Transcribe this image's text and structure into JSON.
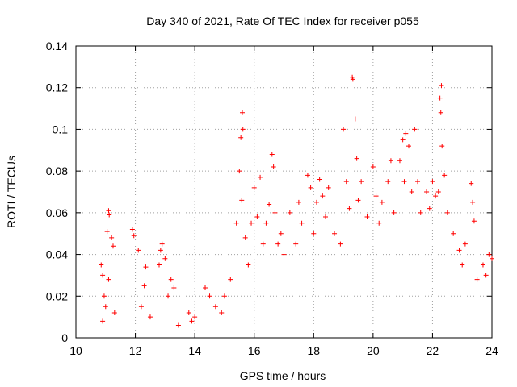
{
  "chart_data": {
    "type": "scatter",
    "title": "Day 340 of 2021, Rate Of TEC Index for receiver p055",
    "xlabel": "GPS time / hours",
    "ylabel": "ROTI / TECUs",
    "xlim": [
      10,
      24
    ],
    "ylim": [
      0,
      0.14
    ],
    "x_ticks": [
      10,
      12,
      14,
      16,
      18,
      20,
      22,
      24
    ],
    "y_ticks": [
      0,
      0.02,
      0.04,
      0.06,
      0.08,
      0.1,
      0.12,
      0.14
    ],
    "x_tick_labels": [
      "10",
      "12",
      "14",
      "16",
      "18",
      "20",
      "22",
      "24"
    ],
    "y_tick_labels": [
      "0",
      "0.02",
      "0.04",
      "0.06",
      "0.08",
      "0.1",
      "0.12",
      "0.14"
    ],
    "grid": true,
    "marker": "+",
    "color": "#ff0000",
    "series": [
      {
        "name": "ROTI",
        "points": [
          [
            10.85,
            0.035
          ],
          [
            10.9,
            0.03
          ],
          [
            10.95,
            0.02
          ],
          [
            11.0,
            0.015
          ],
          [
            11.05,
            0.051
          ],
          [
            11.1,
            0.061
          ],
          [
            11.12,
            0.059
          ],
          [
            11.2,
            0.048
          ],
          [
            11.25,
            0.044
          ],
          [
            11.3,
            0.012
          ],
          [
            11.1,
            0.028
          ],
          [
            10.9,
            0.008
          ],
          [
            11.9,
            0.052
          ],
          [
            11.95,
            0.049
          ],
          [
            12.1,
            0.042
          ],
          [
            12.2,
            0.015
          ],
          [
            12.3,
            0.025
          ],
          [
            12.35,
            0.034
          ],
          [
            12.5,
            0.01
          ],
          [
            12.8,
            0.035
          ],
          [
            12.85,
            0.042
          ],
          [
            12.9,
            0.045
          ],
          [
            13.0,
            0.038
          ],
          [
            13.1,
            0.02
          ],
          [
            13.2,
            0.028
          ],
          [
            13.3,
            0.024
          ],
          [
            13.45,
            0.006
          ],
          [
            13.8,
            0.012
          ],
          [
            13.9,
            0.008
          ],
          [
            14.0,
            0.01
          ],
          [
            14.35,
            0.024
          ],
          [
            14.5,
            0.02
          ],
          [
            14.7,
            0.015
          ],
          [
            14.9,
            0.012
          ],
          [
            15.0,
            0.02
          ],
          [
            15.2,
            0.028
          ],
          [
            15.4,
            0.055
          ],
          [
            15.5,
            0.08
          ],
          [
            15.55,
            0.096
          ],
          [
            15.6,
            0.108
          ],
          [
            15.62,
            0.1
          ],
          [
            15.58,
            0.066
          ],
          [
            15.7,
            0.048
          ],
          [
            15.8,
            0.035
          ],
          [
            15.9,
            0.055
          ],
          [
            16.0,
            0.072
          ],
          [
            16.1,
            0.058
          ],
          [
            16.2,
            0.077
          ],
          [
            16.3,
            0.045
          ],
          [
            16.4,
            0.055
          ],
          [
            16.5,
            0.064
          ],
          [
            16.6,
            0.088
          ],
          [
            16.65,
            0.082
          ],
          [
            16.7,
            0.06
          ],
          [
            16.8,
            0.045
          ],
          [
            16.9,
            0.05
          ],
          [
            17.0,
            0.04
          ],
          [
            17.2,
            0.06
          ],
          [
            17.4,
            0.045
          ],
          [
            17.5,
            0.065
          ],
          [
            17.6,
            0.055
          ],
          [
            17.8,
            0.078
          ],
          [
            17.9,
            0.072
          ],
          [
            18.0,
            0.05
          ],
          [
            18.1,
            0.065
          ],
          [
            18.2,
            0.076
          ],
          [
            18.3,
            0.068
          ],
          [
            18.4,
            0.058
          ],
          [
            18.5,
            0.072
          ],
          [
            18.7,
            0.05
          ],
          [
            18.9,
            0.045
          ],
          [
            19.0,
            0.1
          ],
          [
            19.1,
            0.075
          ],
          [
            19.2,
            0.062
          ],
          [
            19.3,
            0.125
          ],
          [
            19.32,
            0.124
          ],
          [
            19.4,
            0.105
          ],
          [
            19.45,
            0.086
          ],
          [
            19.5,
            0.066
          ],
          [
            19.6,
            0.075
          ],
          [
            19.8,
            0.058
          ],
          [
            20.0,
            0.082
          ],
          [
            20.1,
            0.068
          ],
          [
            20.2,
            0.055
          ],
          [
            20.3,
            0.065
          ],
          [
            20.5,
            0.075
          ],
          [
            20.6,
            0.085
          ],
          [
            20.7,
            0.06
          ],
          [
            20.9,
            0.085
          ],
          [
            21.0,
            0.095
          ],
          [
            21.05,
            0.075
          ],
          [
            21.1,
            0.098
          ],
          [
            21.2,
            0.092
          ],
          [
            21.3,
            0.07
          ],
          [
            21.4,
            0.1
          ],
          [
            21.5,
            0.075
          ],
          [
            21.6,
            0.06
          ],
          [
            21.8,
            0.07
          ],
          [
            21.9,
            0.062
          ],
          [
            22.0,
            0.075
          ],
          [
            22.1,
            0.068
          ],
          [
            22.2,
            0.07
          ],
          [
            22.25,
            0.115
          ],
          [
            22.3,
            0.121
          ],
          [
            22.28,
            0.108
          ],
          [
            22.32,
            0.092
          ],
          [
            22.4,
            0.078
          ],
          [
            22.5,
            0.06
          ],
          [
            22.7,
            0.05
          ],
          [
            22.9,
            0.042
          ],
          [
            23.0,
            0.035
          ],
          [
            23.1,
            0.045
          ],
          [
            23.3,
            0.074
          ],
          [
            23.35,
            0.065
          ],
          [
            23.4,
            0.056
          ],
          [
            23.5,
            0.028
          ],
          [
            23.7,
            0.035
          ],
          [
            23.8,
            0.03
          ],
          [
            23.9,
            0.04
          ],
          [
            24.0,
            0.038
          ]
        ]
      }
    ]
  }
}
